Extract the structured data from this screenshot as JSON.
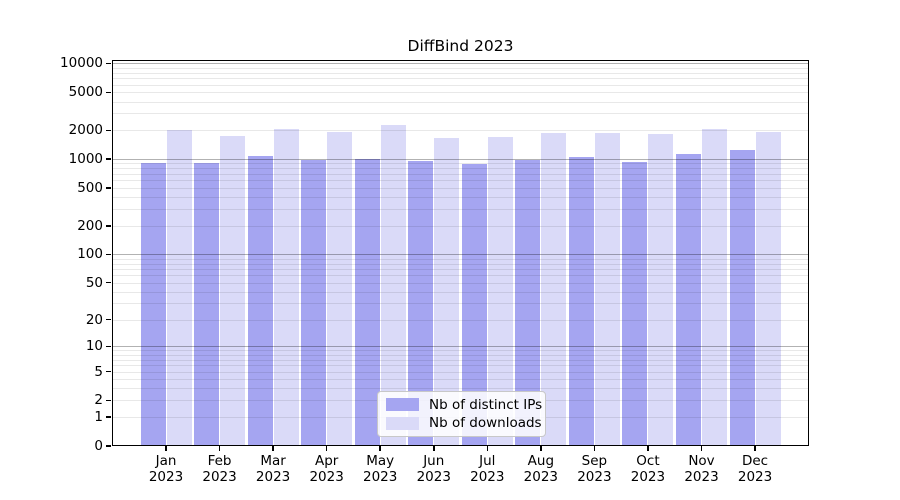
{
  "chart_data": {
    "type": "bar",
    "title": "DiffBind 2023",
    "months": [
      "Jan",
      "Feb",
      "Mar",
      "Apr",
      "May",
      "Jun",
      "Jul",
      "Aug",
      "Sep",
      "Oct",
      "Nov",
      "Dec"
    ],
    "year_label": "2023",
    "series": [
      {
        "name": "Nb of distinct IPs",
        "color": "#a5a5f1",
        "values": [
          910,
          900,
          1090,
          985,
          1000,
          945,
          890,
          985,
          1050,
          935,
          1120,
          1250
        ]
      },
      {
        "name": "Nb of downloads",
        "color": "#dadaf8",
        "values": [
          2000,
          1750,
          2060,
          1940,
          2300,
          1680,
          1700,
          1880,
          1860,
          1810,
          2060,
          1940
        ]
      }
    ],
    "y_axis": {
      "scale": "log1p",
      "ticks": [
        0,
        1,
        2,
        5,
        10,
        20,
        50,
        100,
        200,
        500,
        1000,
        2000,
        5000,
        10000
      ],
      "ylim": [
        0,
        10000
      ]
    },
    "grid": true,
    "legend_position": "bottom-center",
    "colors": {
      "major_gridline": "#b3b3b3",
      "minor_gridline": "#e8e8e8",
      "axis": "#000000"
    }
  }
}
